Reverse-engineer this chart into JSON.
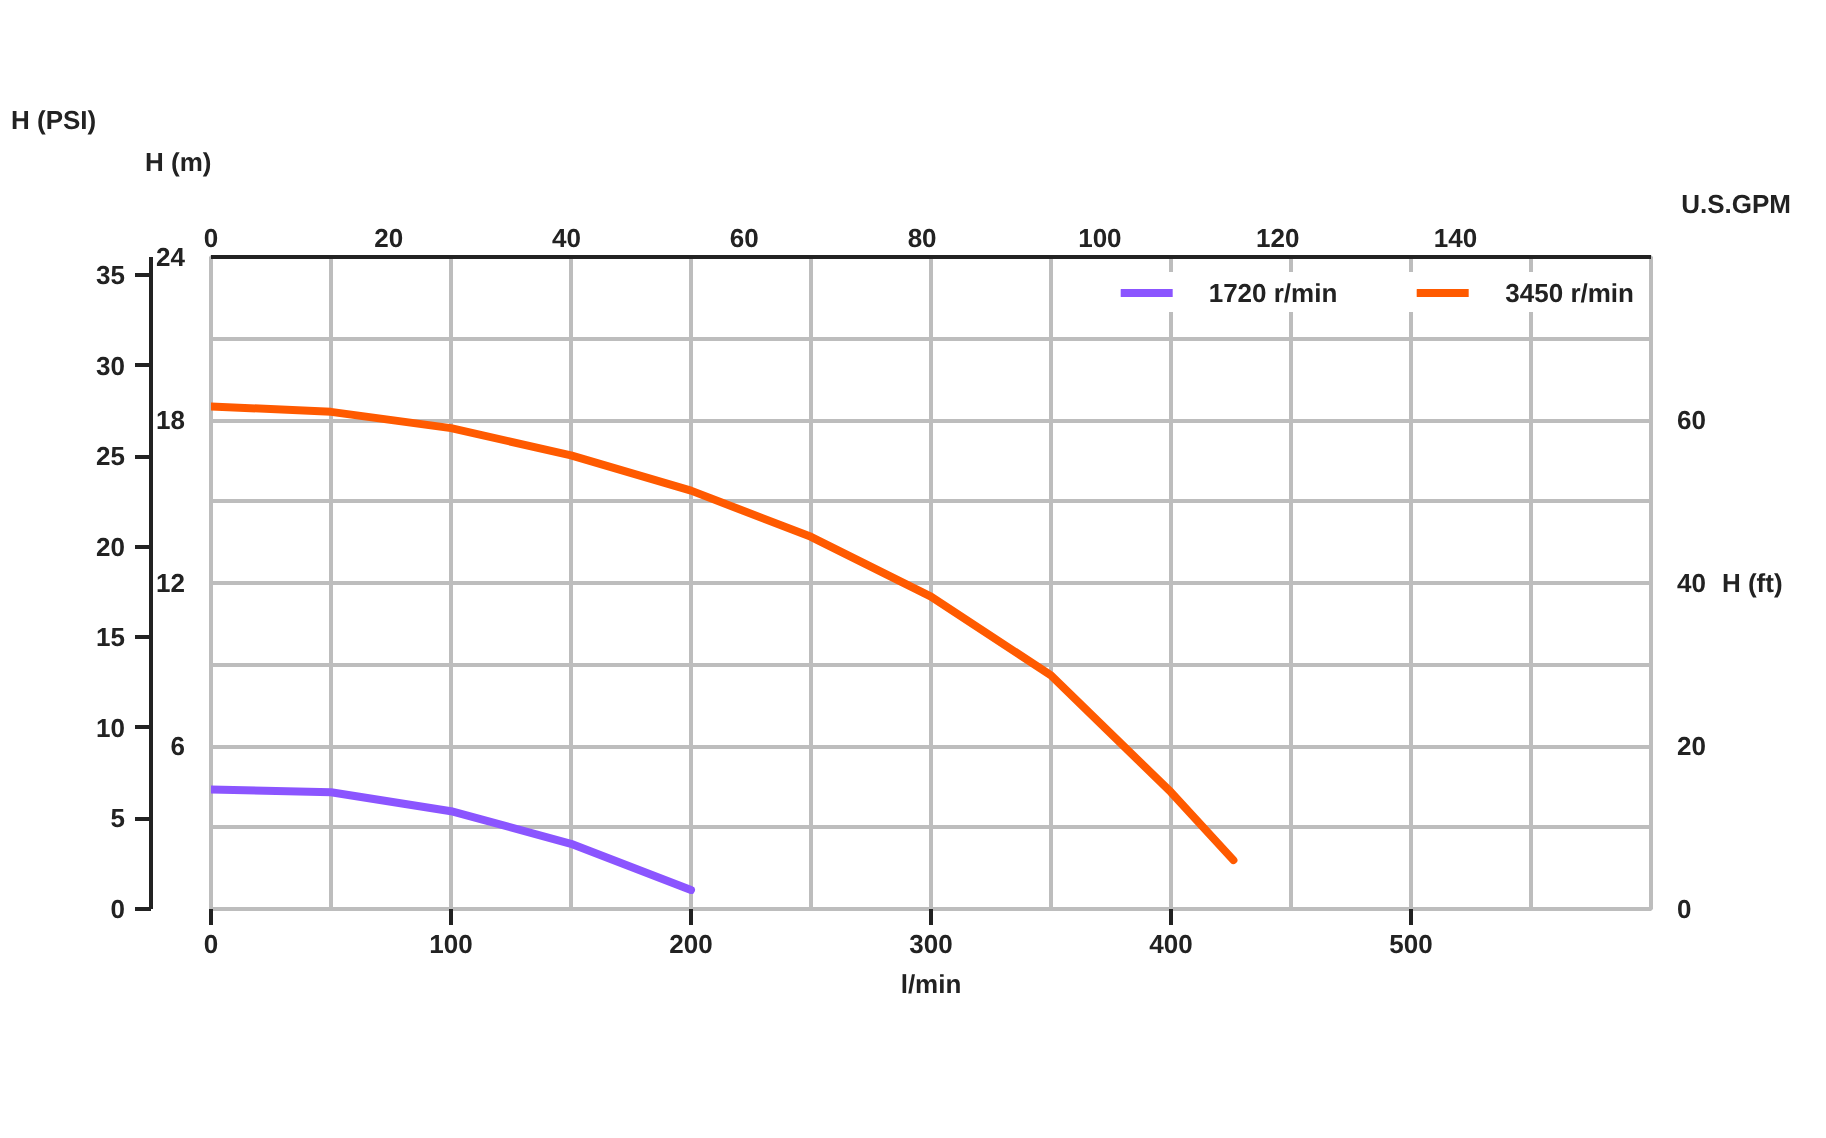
{
  "chart_data": {
    "type": "line",
    "xlabel": "l/min",
    "ylabel": "H (m)",
    "y2label": "H (ft)",
    "y3label": "H (PSI)",
    "x2label": "U.S.GPM",
    "xlim": [
      0,
      600
    ],
    "xticks": [
      0,
      {
        "value": 50,
        "label": null
      },
      100,
      {
        "value": 150,
        "label": null
      },
      200,
      {
        "value": 250,
        "label": null
      },
      300,
      {
        "value": 350,
        "label": null
      },
      400,
      {
        "value": 450,
        "label": null
      },
      500,
      {
        "value": 550,
        "label": null
      },
      {
        "value": 600,
        "label": null
      }
    ],
    "ylim": [
      0,
      24
    ],
    "yticks": [
      {
        "value": 0,
        "label": null
      },
      {
        "value": 3,
        "label": null
      },
      6,
      {
        "value": 9,
        "label": null
      },
      12,
      {
        "value": 15,
        "label": null
      },
      18,
      {
        "value": 21,
        "label": null
      },
      24
    ],
    "y2lim": [
      0,
      80
    ],
    "y2ticks": [
      0,
      20,
      40,
      60
    ],
    "y3lim": [
      0,
      36
    ],
    "y3ticks": [
      0,
      5,
      10,
      15,
      20,
      25,
      30,
      35
    ],
    "x2lim": [
      0,
      162
    ],
    "x2ticks": [
      0,
      20,
      40,
      60,
      80,
      100,
      120,
      140
    ],
    "grid": true,
    "legend": "top right",
    "line_style": "solid",
    "series": [
      {
        "name": "1720 r/min",
        "color": "#8b55ff",
        "x": [
          0,
          50,
          100,
          150,
          200
        ],
        "values": [
          4.4,
          4.3,
          3.6,
          2.4,
          0.7
        ]
      },
      {
        "name": "3450 r/min",
        "color": "#ff5a00",
        "x": [
          0,
          50,
          100,
          150,
          200,
          250,
          300,
          350,
          400,
          426
        ],
        "values": [
          18.5,
          18.3,
          17.7,
          16.7,
          15.4,
          13.7,
          11.5,
          8.6,
          4.3,
          1.8
        ]
      }
    ]
  }
}
